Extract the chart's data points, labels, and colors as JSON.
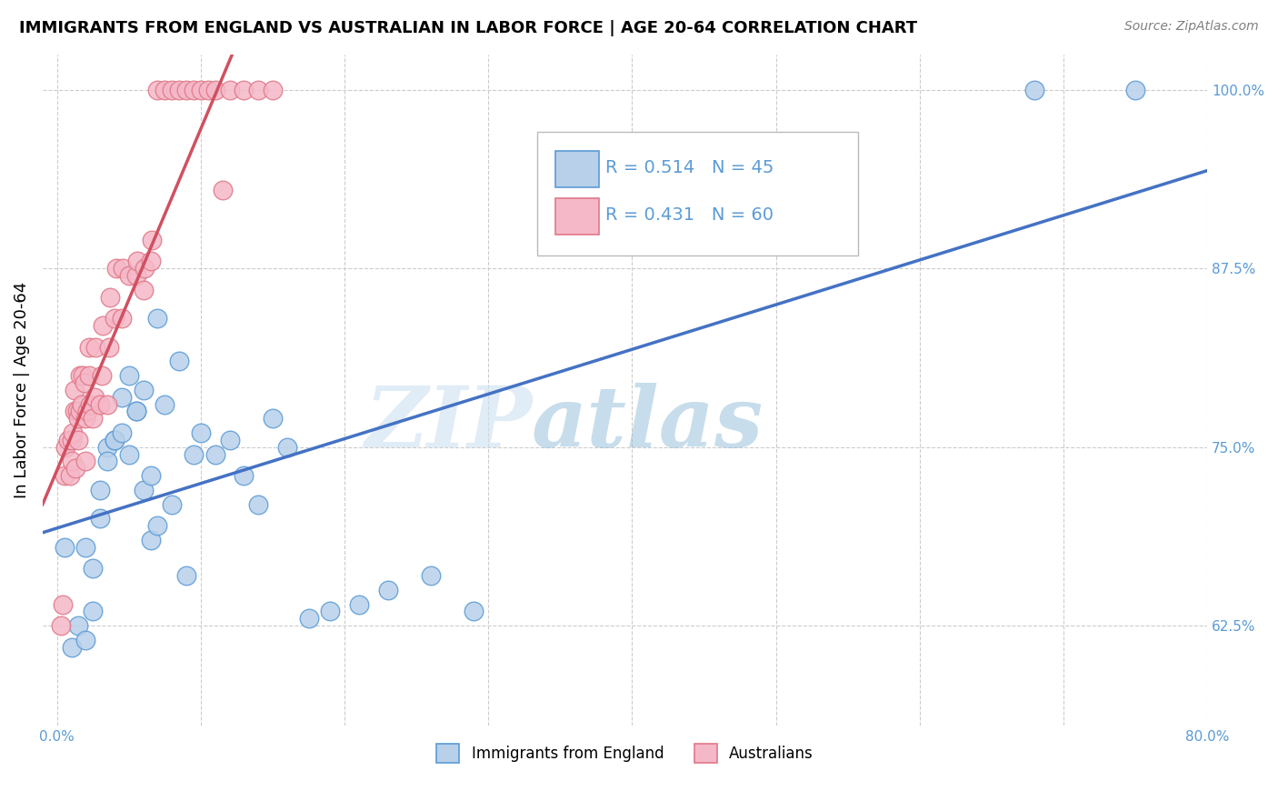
{
  "title": "IMMIGRANTS FROM ENGLAND VS AUSTRALIAN IN LABOR FORCE | AGE 20-64 CORRELATION CHART",
  "source": "Source: ZipAtlas.com",
  "ylabel": "In Labor Force | Age 20-64",
  "xlim": [
    -0.01,
    0.8
  ],
  "ylim": [
    0.555,
    1.025
  ],
  "xticks": [
    0.0,
    0.1,
    0.2,
    0.3,
    0.4,
    0.5,
    0.6,
    0.7,
    0.8
  ],
  "xticklabels": [
    "0.0%",
    "",
    "",
    "",
    "",
    "",
    "",
    "",
    "80.0%"
  ],
  "yticks": [
    0.625,
    0.75,
    0.875,
    1.0
  ],
  "yticklabels": [
    "62.5%",
    "75.0%",
    "87.5%",
    "100.0%"
  ],
  "R_england": 0.514,
  "N_england": 45,
  "R_australia": 0.431,
  "N_australia": 60,
  "england_color": "#b8d0ea",
  "australia_color": "#f5b8c8",
  "england_edge_color": "#5b9bd5",
  "australia_edge_color": "#e07888",
  "england_line_color": "#4472c4",
  "australia_line_color": "#d05060",
  "tick_color": "#5b9bd5",
  "legend_label_england": "Immigrants from England",
  "legend_label_australia": "Australians",
  "watermark_zip": "ZIP",
  "watermark_atlas": "atlas",
  "england_x": [
    0.005,
    0.01,
    0.015,
    0.02,
    0.02,
    0.025,
    0.025,
    0.03,
    0.03,
    0.035,
    0.035,
    0.04,
    0.04,
    0.045,
    0.045,
    0.05,
    0.05,
    0.055,
    0.055,
    0.06,
    0.06,
    0.065,
    0.065,
    0.07,
    0.07,
    0.075,
    0.08,
    0.085,
    0.09,
    0.095,
    0.1,
    0.11,
    0.12,
    0.13,
    0.14,
    0.15,
    0.16,
    0.175,
    0.19,
    0.21,
    0.23,
    0.26,
    0.29,
    0.68,
    0.75
  ],
  "england_y": [
    0.68,
    0.61,
    0.625,
    0.615,
    0.68,
    0.635,
    0.665,
    0.7,
    0.72,
    0.75,
    0.74,
    0.755,
    0.755,
    0.785,
    0.76,
    0.745,
    0.8,
    0.775,
    0.775,
    0.72,
    0.79,
    0.685,
    0.73,
    0.84,
    0.695,
    0.78,
    0.71,
    0.81,
    0.66,
    0.745,
    0.76,
    0.745,
    0.755,
    0.73,
    0.71,
    0.77,
    0.75,
    0.63,
    0.635,
    0.64,
    0.65,
    0.66,
    0.635,
    1.0,
    1.0
  ],
  "australia_x": [
    0.003,
    0.004,
    0.005,
    0.006,
    0.008,
    0.009,
    0.01,
    0.01,
    0.011,
    0.012,
    0.012,
    0.013,
    0.014,
    0.015,
    0.015,
    0.016,
    0.016,
    0.017,
    0.018,
    0.019,
    0.02,
    0.02,
    0.021,
    0.022,
    0.022,
    0.023,
    0.025,
    0.026,
    0.027,
    0.03,
    0.031,
    0.032,
    0.035,
    0.036,
    0.037,
    0.04,
    0.041,
    0.045,
    0.046,
    0.05,
    0.055,
    0.056,
    0.06,
    0.061,
    0.065,
    0.066,
    0.07,
    0.075,
    0.08,
    0.085,
    0.09,
    0.095,
    0.1,
    0.105,
    0.11,
    0.115,
    0.12,
    0.13,
    0.14,
    0.15
  ],
  "australia_y": [
    0.625,
    0.64,
    0.73,
    0.75,
    0.755,
    0.73,
    0.74,
    0.755,
    0.76,
    0.775,
    0.79,
    0.735,
    0.775,
    0.755,
    0.77,
    0.775,
    0.8,
    0.78,
    0.8,
    0.795,
    0.74,
    0.77,
    0.775,
    0.8,
    0.82,
    0.78,
    0.77,
    0.785,
    0.82,
    0.78,
    0.8,
    0.835,
    0.78,
    0.82,
    0.855,
    0.84,
    0.875,
    0.84,
    0.875,
    0.87,
    0.87,
    0.88,
    0.86,
    0.875,
    0.88,
    0.895,
    1.0,
    1.0,
    1.0,
    1.0,
    1.0,
    1.0,
    1.0,
    1.0,
    1.0,
    0.93,
    1.0,
    1.0,
    1.0,
    1.0
  ]
}
